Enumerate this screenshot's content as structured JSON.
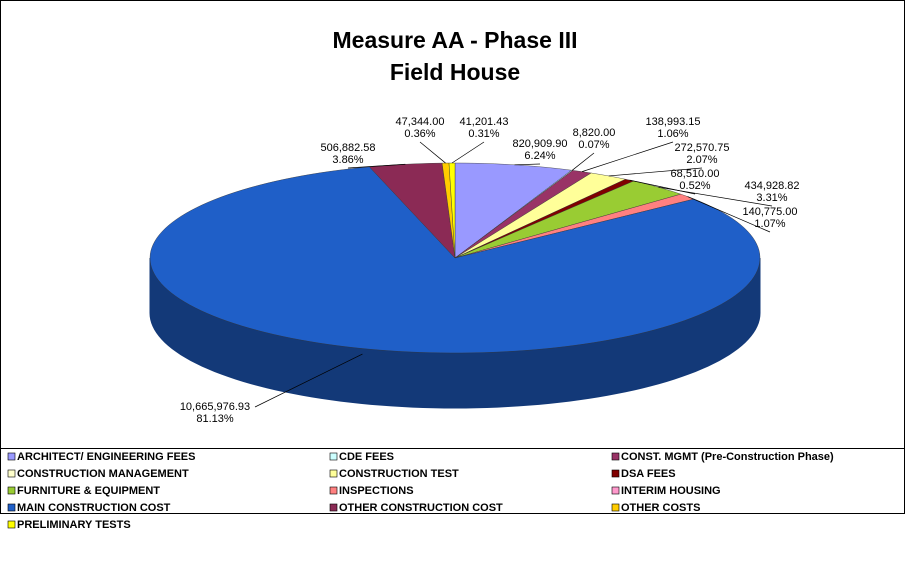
{
  "chart_data": {
    "type": "pie3d",
    "title": [
      "Measure AA - Phase III",
      "Field House"
    ],
    "categories": [
      "ARCHITECT/ ENGINEERING FEES",
      "CDE FEES",
      "CONST. MGMT (Pre-Construction Phase)",
      "CONSTRUCTION MANAGEMENT",
      "CONSTRUCTION TEST",
      "DSA FEES",
      "FURNITURE & EQUIPMENT",
      "INSPECTIONS",
      "INTERIM HOUSING",
      "MAIN CONSTRUCTION COST",
      "OTHER CONSTRUCTION COST",
      "OTHER COSTS",
      "PRELIMINARY TESTS"
    ],
    "values": [
      820909.9,
      8820.0,
      138993.15,
      null,
      272570.75,
      68510.0,
      434928.82,
      140775.0,
      null,
      10665976.93,
      506882.58,
      47344.0,
      41201.43
    ],
    "value_labels": [
      "820,909.90",
      "8,820.00",
      "138,993.15",
      null,
      "272,570.75",
      "68,510.00",
      "434,928.82",
      "140,775.00",
      null,
      "10,665,976.93",
      "506,882.58",
      "47,344.00",
      "41,201.43"
    ],
    "percent_labels": [
      "6.24%",
      "0.07%",
      "1.06%",
      null,
      "2.07%",
      "0.52%",
      "3.31%",
      "1.07%",
      null,
      "81.13%",
      "3.86%",
      "0.36%",
      "0.31%"
    ],
    "colors": [
      "#9999ff",
      "#ccffff",
      "#993366",
      "#ffffcc",
      "#ffff99",
      "#800000",
      "#99cc33",
      "#ff8080",
      "#ff99cc",
      "#1f5fc8",
      "#8b2a55",
      "#ffcc00",
      "#ffff00"
    ],
    "legend": "bottom"
  }
}
